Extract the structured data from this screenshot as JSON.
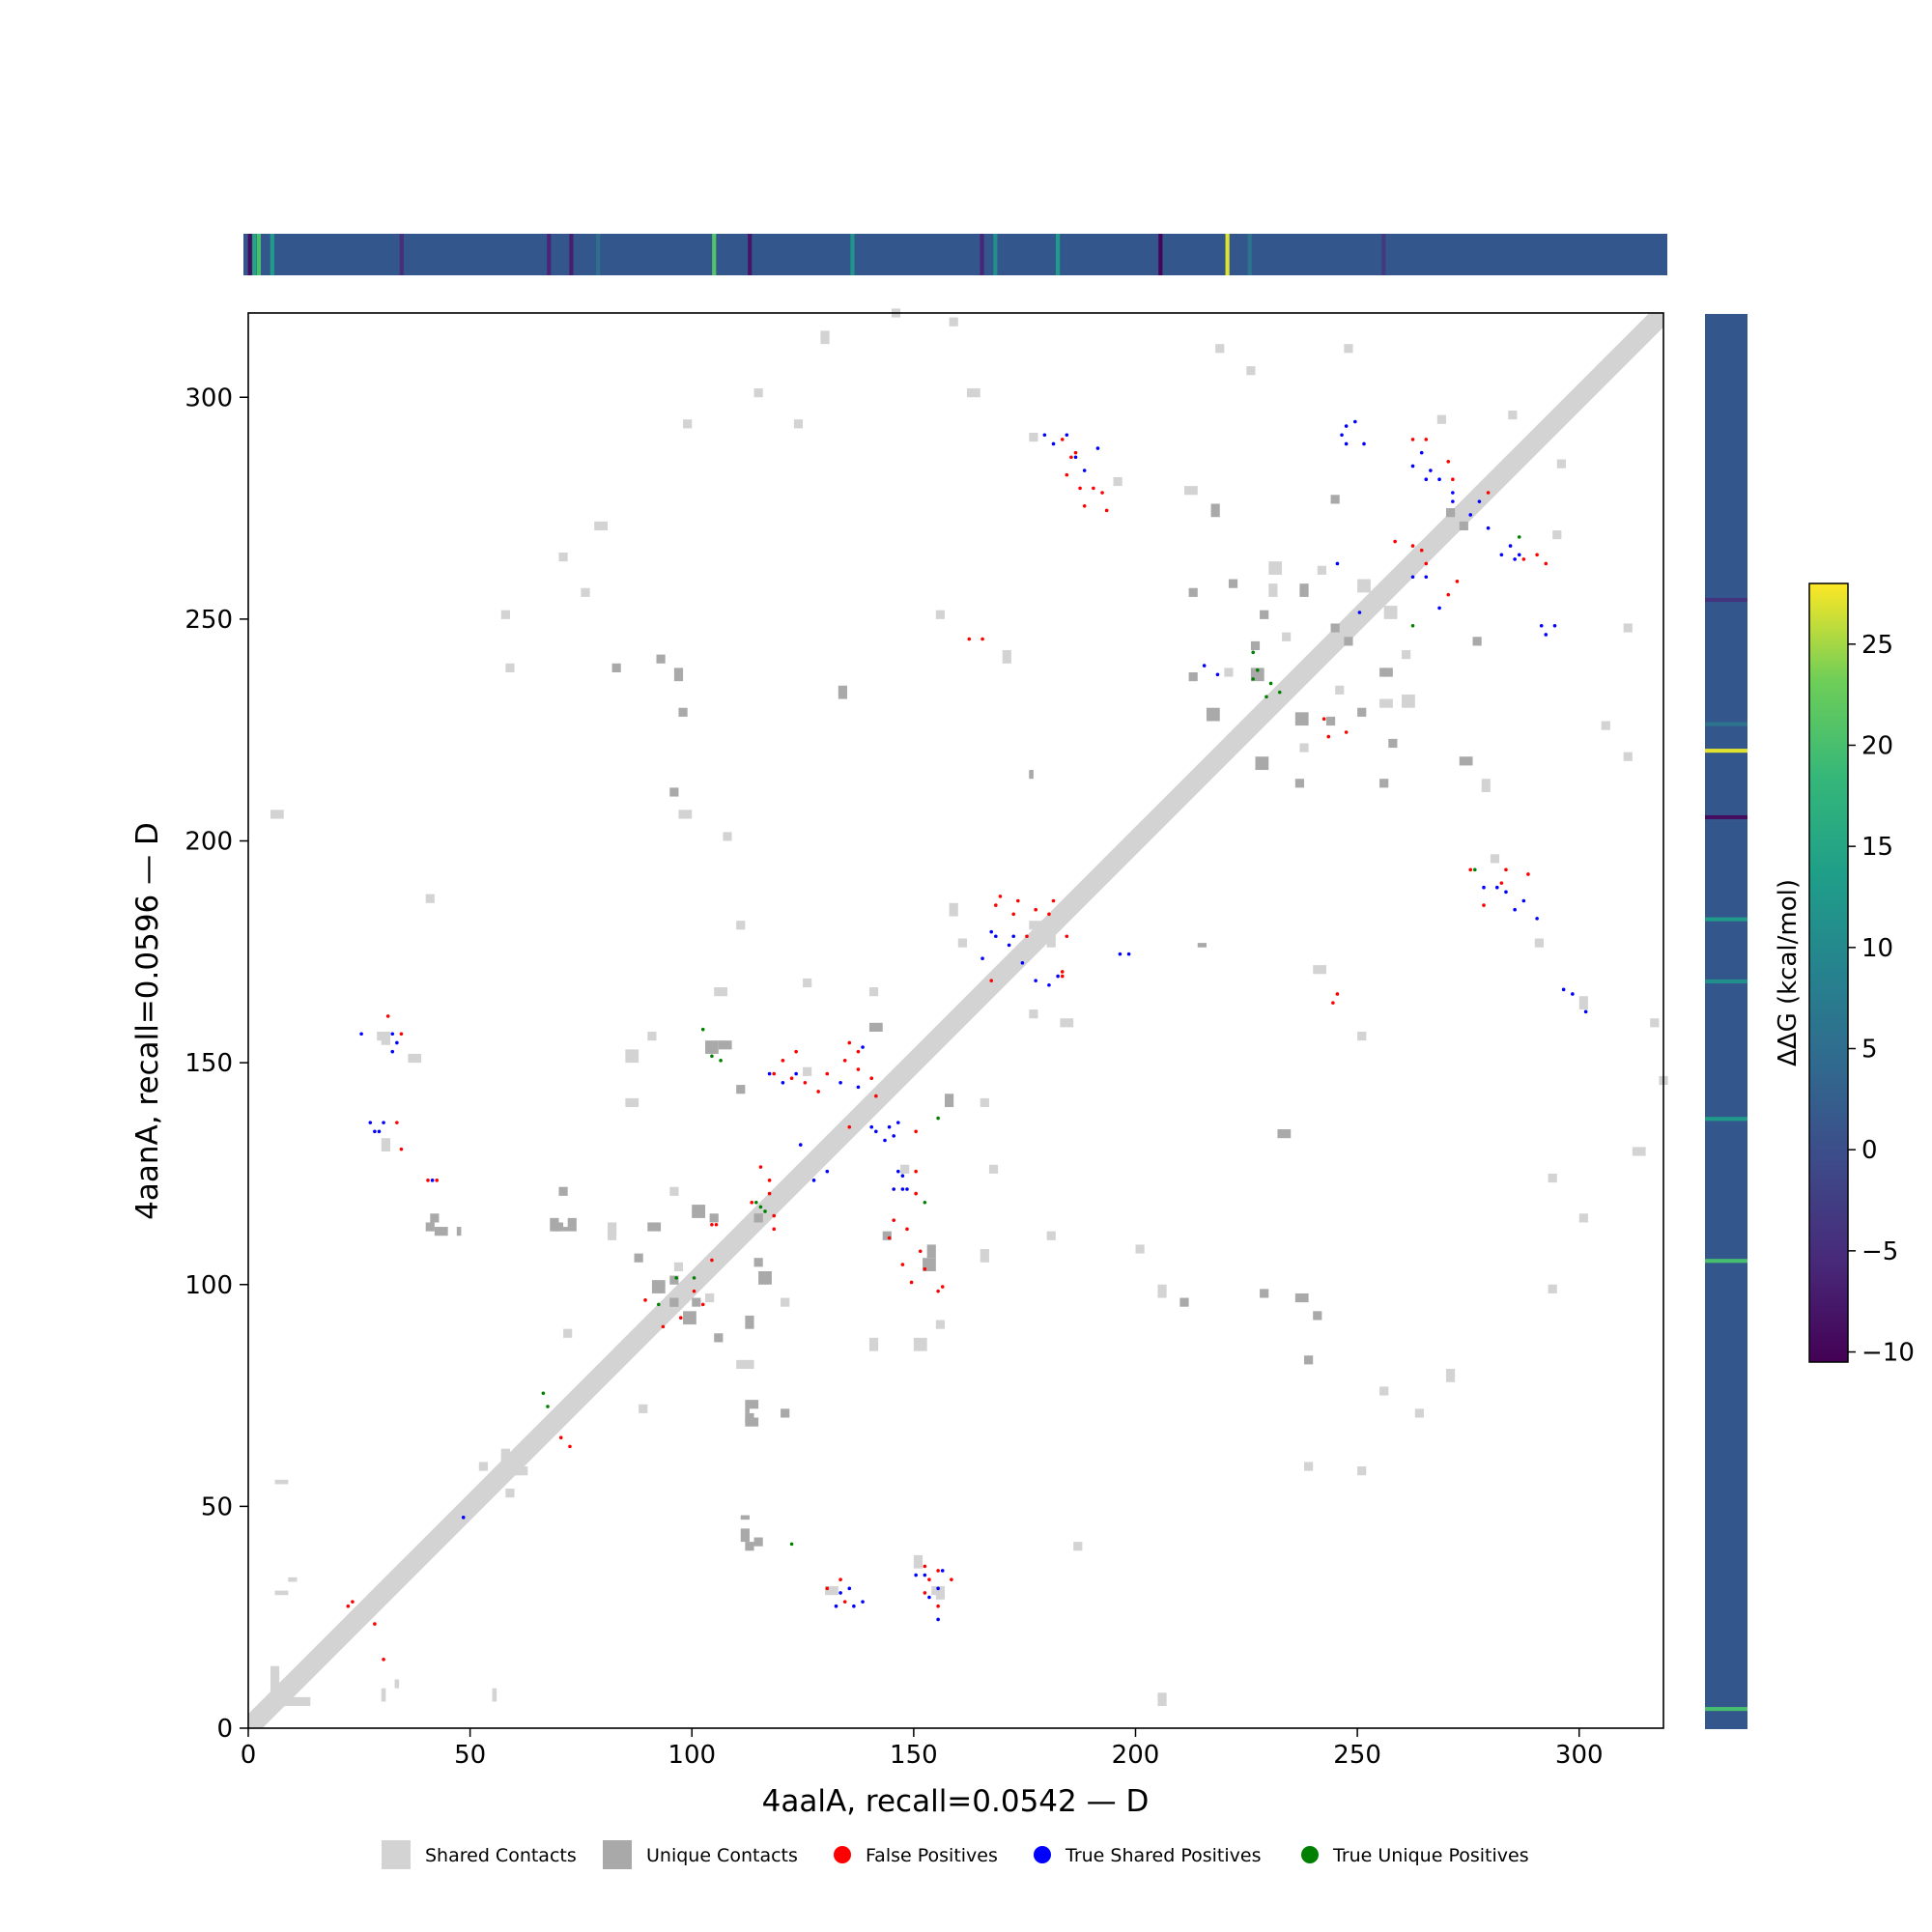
{
  "chart_data": {
    "type": "heatmap",
    "title": "",
    "xlabel": "4aalA, recall=0.0542 — D",
    "ylabel": "4aanA, recall=0.0596 — D",
    "xlim": [
      0,
      319
    ],
    "ylim": [
      0,
      319
    ],
    "x_ticks": [
      0,
      50,
      100,
      150,
      200,
      250,
      300
    ],
    "y_ticks": [
      0,
      50,
      100,
      150,
      200,
      250,
      300
    ],
    "grid": false,
    "legend_position": "bottom-center",
    "legend": [
      {
        "name": "Shared Contacts",
        "color": "#d3d3d3",
        "marker": "square"
      },
      {
        "name": "Unique Contacts",
        "color": "#a9a9a9",
        "marker": "square"
      },
      {
        "name": "False Positives",
        "color": "#ff0000",
        "marker": "circle"
      },
      {
        "name": "True Shared Positives",
        "color": "#0000ff",
        "marker": "circle"
      },
      {
        "name": "True Unique Positives",
        "color": "#008000",
        "marker": "circle"
      }
    ],
    "colorbar": {
      "label": "ΔΔG (kcal/mol)",
      "min": -10.5,
      "max": 28,
      "ticks": [
        -10,
        -5,
        0,
        5,
        10,
        15,
        20,
        25
      ],
      "colormap": "viridis"
    },
    "ddg_top_highlights": [
      {
        "pos": 1,
        "value": -9
      },
      {
        "pos": 2,
        "value": 15
      },
      {
        "pos": 3,
        "value": 20
      },
      {
        "pos": 6,
        "value": 13
      },
      {
        "pos": 35,
        "value": -5
      },
      {
        "pos": 68,
        "value": -6
      },
      {
        "pos": 73,
        "value": -7
      },
      {
        "pos": 79,
        "value": 5
      },
      {
        "pos": 105,
        "value": 21
      },
      {
        "pos": 113,
        "value": -8
      },
      {
        "pos": 136,
        "value": 12
      },
      {
        "pos": 165,
        "value": -6
      },
      {
        "pos": 168,
        "value": 11
      },
      {
        "pos": 182,
        "value": 13
      },
      {
        "pos": 205,
        "value": -10
      },
      {
        "pos": 220,
        "value": 27
      },
      {
        "pos": 225,
        "value": 6
      },
      {
        "pos": 255,
        "value": -3
      }
    ],
    "ddg_right_highlights": [
      {
        "pos": 4,
        "value": 20
      },
      {
        "pos": 105,
        "value": 20
      },
      {
        "pos": 137,
        "value": 13
      },
      {
        "pos": 168,
        "value": 11
      },
      {
        "pos": 182,
        "value": 13
      },
      {
        "pos": 205,
        "value": -9
      },
      {
        "pos": 220,
        "value": 27
      },
      {
        "pos": 226,
        "value": 6
      },
      {
        "pos": 254,
        "value": -4
      }
    ],
    "shared_contact_clusters": [
      [
        5,
        8,
        2,
        6
      ],
      [
        30,
        6,
        1,
        3
      ],
      [
        33,
        9,
        1,
        2
      ],
      [
        55,
        6,
        1,
        3
      ],
      [
        57,
        60,
        2,
        3
      ],
      [
        58,
        52,
        2,
        2
      ],
      [
        60,
        57,
        2,
        2
      ],
      [
        71,
        88,
        2,
        2
      ],
      [
        81,
        110,
        2,
        4
      ],
      [
        85,
        140,
        3,
        2
      ],
      [
        85,
        150,
        3,
        3
      ],
      [
        90,
        155,
        2,
        2
      ],
      [
        95,
        120,
        2,
        2
      ],
      [
        96,
        103,
        2,
        2
      ],
      [
        100,
        115,
        3,
        2
      ],
      [
        105,
        165,
        3,
        2
      ],
      [
        110,
        180,
        2,
        2
      ],
      [
        125,
        147,
        2,
        2
      ],
      [
        123,
        293,
        2,
        2
      ],
      [
        129,
        312,
        2,
        3
      ],
      [
        140,
        165,
        2,
        2
      ],
      [
        145,
        145,
        2,
        2
      ],
      [
        150,
        36,
        2,
        3
      ],
      [
        155,
        29,
        2,
        2
      ],
      [
        155,
        250,
        2,
        2
      ],
      [
        158,
        183,
        2,
        3
      ],
      [
        160,
        176,
        2,
        2
      ],
      [
        162,
        300,
        3,
        2
      ],
      [
        167,
        125,
        2,
        2
      ],
      [
        176,
        180,
        3,
        2
      ],
      [
        179,
        178,
        2,
        2
      ],
      [
        200,
        107,
        2,
        2
      ],
      [
        205,
        5,
        2,
        3
      ],
      [
        205,
        97,
        2,
        3
      ],
      [
        210,
        210,
        3,
        2
      ],
      [
        220,
        237,
        2,
        2
      ],
      [
        230,
        255,
        2,
        3
      ],
      [
        240,
        170,
        3,
        2
      ],
      [
        245,
        233,
        2,
        2
      ],
      [
        250,
        57,
        2,
        2
      ],
      [
        255,
        75,
        2,
        2
      ],
      [
        250,
        256,
        3,
        3
      ],
      [
        260,
        241,
        2,
        2
      ],
      [
        268,
        294,
        2,
        2
      ],
      [
        278,
        211,
        2,
        3
      ],
      [
        280,
        195,
        2,
        2
      ],
      [
        284,
        295,
        2,
        2
      ],
      [
        290,
        176,
        2,
        2
      ],
      [
        300,
        114,
        2,
        2
      ],
      [
        305,
        225,
        2,
        2
      ],
      [
        310,
        218,
        2,
        2
      ],
      [
        316,
        158,
        2,
        2
      ],
      [
        318,
        145,
        2,
        2
      ],
      [
        310,
        247,
        2,
        2
      ],
      [
        230,
        260,
        3,
        3
      ],
      [
        130,
        30,
        3,
        2
      ],
      [
        154,
        30,
        3,
        2
      ],
      [
        186,
        40,
        2,
        2
      ],
      [
        58,
        238,
        2,
        2
      ],
      [
        70,
        263,
        2,
        2
      ],
      [
        78,
        270,
        3,
        2
      ],
      [
        98,
        293,
        2,
        2
      ]
    ],
    "unique_contact_clusters": [
      [
        40,
        112,
        2,
        2
      ],
      [
        41,
        114,
        2,
        2
      ],
      [
        69,
        112,
        2,
        2
      ],
      [
        70,
        120,
        2,
        2
      ],
      [
        71,
        112,
        3,
        1
      ],
      [
        95,
        95,
        2,
        2
      ],
      [
        96,
        236,
        2,
        3
      ],
      [
        98,
        91,
        3,
        3
      ],
      [
        100,
        95,
        2,
        2
      ],
      [
        103,
        152,
        3,
        3
      ],
      [
        112,
        68,
        3,
        2
      ],
      [
        113,
        72,
        2,
        2
      ],
      [
        112,
        90,
        2,
        3
      ],
      [
        114,
        104,
        2,
        2
      ],
      [
        115,
        100,
        3,
        3
      ],
      [
        111,
        42,
        2,
        3
      ],
      [
        111,
        47,
        2,
        1
      ],
      [
        106,
        153,
        3,
        2
      ],
      [
        105,
        87,
        2,
        2
      ],
      [
        114,
        114,
        2,
        2
      ],
      [
        143,
        110,
        2,
        2
      ],
      [
        157,
        140,
        2,
        3
      ],
      [
        210,
        95,
        2,
        2
      ],
      [
        212,
        236,
        2,
        2
      ],
      [
        214,
        176,
        2,
        1
      ],
      [
        216,
        227,
        3,
        3
      ],
      [
        221,
        257,
        2,
        2
      ],
      [
        226,
        243,
        2,
        2
      ],
      [
        228,
        250,
        2,
        2
      ],
      [
        236,
        226,
        3,
        3
      ],
      [
        240,
        92,
        2,
        2
      ],
      [
        247,
        244,
        2,
        2
      ],
      [
        255,
        212,
        2,
        2
      ],
      [
        273,
        217,
        3,
        2
      ],
      [
        273,
        270,
        2,
        2
      ],
      [
        237,
        255,
        2,
        2
      ],
      [
        232,
        133,
        3,
        2
      ],
      [
        238,
        82,
        2,
        2
      ],
      [
        228,
        97,
        2,
        2
      ],
      [
        276,
        244,
        2,
        2
      ],
      [
        256,
        237,
        2,
        2
      ]
    ],
    "false_positives": [
      [
        22,
        27
      ],
      [
        23,
        28
      ],
      [
        28,
        23
      ],
      [
        30,
        15
      ],
      [
        34,
        156
      ],
      [
        31,
        160
      ],
      [
        33,
        136
      ],
      [
        34,
        130
      ],
      [
        40,
        123
      ],
      [
        42,
        123
      ],
      [
        70,
        65
      ],
      [
        72,
        63
      ],
      [
        89,
        96
      ],
      [
        93,
        90
      ],
      [
        97,
        92
      ],
      [
        100,
        98
      ],
      [
        102,
        95
      ],
      [
        104,
        105
      ],
      [
        104,
        113
      ],
      [
        105,
        113
      ],
      [
        113,
        118
      ],
      [
        115,
        126
      ],
      [
        117,
        120
      ],
      [
        117,
        123
      ],
      [
        118,
        112
      ],
      [
        118,
        115
      ],
      [
        118,
        147
      ],
      [
        120,
        150
      ],
      [
        123,
        152
      ],
      [
        122,
        146
      ],
      [
        125,
        145
      ],
      [
        130,
        147
      ],
      [
        128,
        143
      ],
      [
        133,
        33
      ],
      [
        130,
        31
      ],
      [
        134,
        28
      ],
      [
        135,
        135
      ],
      [
        137,
        152
      ],
      [
        134,
        150
      ],
      [
        135,
        154
      ],
      [
        141,
        142
      ],
      [
        140,
        146
      ],
      [
        137,
        148
      ],
      [
        144,
        110
      ],
      [
        145,
        114
      ],
      [
        147,
        104
      ],
      [
        148,
        112
      ],
      [
        149,
        100
      ],
      [
        150,
        134
      ],
      [
        150,
        120
      ],
      [
        150,
        125
      ],
      [
        151,
        107
      ],
      [
        152,
        103
      ],
      [
        152,
        36
      ],
      [
        152,
        30
      ],
      [
        153,
        33
      ],
      [
        155,
        27
      ],
      [
        155,
        35
      ],
      [
        155,
        98
      ],
      [
        156,
        99
      ],
      [
        158,
        33
      ],
      [
        162,
        245
      ],
      [
        165,
        245
      ],
      [
        167,
        168
      ],
      [
        168,
        185
      ],
      [
        169,
        187
      ],
      [
        172,
        183
      ],
      [
        173,
        186
      ],
      [
        175,
        178
      ],
      [
        177,
        184
      ],
      [
        180,
        183
      ],
      [
        181,
        186
      ],
      [
        183,
        169
      ],
      [
        183,
        170
      ],
      [
        184,
        178
      ],
      [
        183,
        290
      ],
      [
        184,
        282
      ],
      [
        185,
        286
      ],
      [
        186,
        287
      ],
      [
        187,
        279
      ],
      [
        188,
        275
      ],
      [
        190,
        279
      ],
      [
        192,
        278
      ],
      [
        193,
        274
      ],
      [
        244,
        163
      ],
      [
        245,
        165
      ],
      [
        242,
        227
      ],
      [
        243,
        223
      ],
      [
        247,
        224
      ],
      [
        258,
        267
      ],
      [
        262,
        266
      ],
      [
        264,
        265
      ],
      [
        265,
        262
      ],
      [
        270,
        255
      ],
      [
        272,
        258
      ],
      [
        275,
        193
      ],
      [
        278,
        185
      ],
      [
        282,
        190
      ],
      [
        283,
        193
      ],
      [
        288,
        192
      ],
      [
        287,
        263
      ],
      [
        290,
        264
      ],
      [
        292,
        262
      ],
      [
        262,
        290
      ],
      [
        265,
        290
      ],
      [
        271,
        281
      ],
      [
        270,
        285
      ],
      [
        279,
        278
      ]
    ],
    "true_shared_positives": [
      [
        25,
        156
      ],
      [
        27,
        136
      ],
      [
        28,
        134
      ],
      [
        29,
        134
      ],
      [
        30,
        136
      ],
      [
        32,
        152
      ],
      [
        32,
        156
      ],
      [
        33,
        154
      ],
      [
        41,
        123
      ],
      [
        48,
        47
      ],
      [
        132,
        27
      ],
      [
        133,
        30
      ],
      [
        135,
        31
      ],
      [
        136,
        27
      ],
      [
        138,
        28
      ],
      [
        140,
        135
      ],
      [
        141,
        134
      ],
      [
        143,
        132
      ],
      [
        144,
        135
      ],
      [
        145,
        121
      ],
      [
        146,
        125
      ],
      [
        147,
        121
      ],
      [
        147,
        124
      ],
      [
        148,
        121
      ],
      [
        150,
        34
      ],
      [
        152,
        34
      ],
      [
        153,
        29
      ],
      [
        155,
        24
      ],
      [
        155,
        31
      ],
      [
        156,
        35
      ],
      [
        117,
        147
      ],
      [
        120,
        145
      ],
      [
        123,
        147
      ],
      [
        124,
        131
      ],
      [
        127,
        123
      ],
      [
        130,
        125
      ],
      [
        133,
        145
      ],
      [
        137,
        144
      ],
      [
        138,
        153
      ],
      [
        145,
        133
      ],
      [
        146,
        136
      ],
      [
        165,
        173
      ],
      [
        167,
        179
      ],
      [
        168,
        178
      ],
      [
        171,
        176
      ],
      [
        172,
        178
      ],
      [
        174,
        172
      ],
      [
        177,
        168
      ],
      [
        180,
        167
      ],
      [
        182,
        169
      ],
      [
        179,
        291
      ],
      [
        181,
        289
      ],
      [
        184,
        291
      ],
      [
        186,
        286
      ],
      [
        188,
        283
      ],
      [
        191,
        288
      ],
      [
        196,
        174
      ],
      [
        198,
        174
      ],
      [
        246,
        291
      ],
      [
        247,
        293
      ],
      [
        249,
        294
      ],
      [
        247,
        289
      ],
      [
        251,
        289
      ],
      [
        250,
        251
      ],
      [
        245,
        262
      ],
      [
        262,
        284
      ],
      [
        264,
        287
      ],
      [
        265,
        281
      ],
      [
        266,
        283
      ],
      [
        268,
        281
      ],
      [
        271,
        276
      ],
      [
        271,
        278
      ],
      [
        275,
        273
      ],
      [
        277,
        276
      ],
      [
        279,
        270
      ],
      [
        282,
        264
      ],
      [
        284,
        266
      ],
      [
        285,
        263
      ],
      [
        286,
        264
      ],
      [
        278,
        189
      ],
      [
        281,
        189
      ],
      [
        283,
        188
      ],
      [
        285,
        184
      ],
      [
        287,
        186
      ],
      [
        290,
        182
      ],
      [
        291,
        248
      ],
      [
        292,
        246
      ],
      [
        294,
        248
      ],
      [
        296,
        166
      ],
      [
        298,
        165
      ],
      [
        301,
        161
      ],
      [
        262,
        259
      ],
      [
        265,
        259
      ],
      [
        268,
        252
      ],
      [
        215,
        239
      ],
      [
        218,
        237
      ]
    ],
    "true_unique_positives": [
      [
        102,
        157
      ],
      [
        104,
        151
      ],
      [
        106,
        150
      ],
      [
        100,
        101
      ],
      [
        96,
        101
      ],
      [
        92,
        95
      ],
      [
        115,
        117
      ],
      [
        116,
        116
      ],
      [
        114,
        118
      ],
      [
        66,
        75
      ],
      [
        67,
        72
      ],
      [
        122,
        41
      ],
      [
        152,
        118
      ],
      [
        155,
        137
      ],
      [
        226,
        236
      ],
      [
        227,
        238
      ],
      [
        229,
        232
      ],
      [
        230,
        235
      ],
      [
        226,
        242
      ],
      [
        232,
        233
      ],
      [
        262,
        248
      ],
      [
        276,
        193
      ],
      [
        286,
        268
      ]
    ]
  }
}
